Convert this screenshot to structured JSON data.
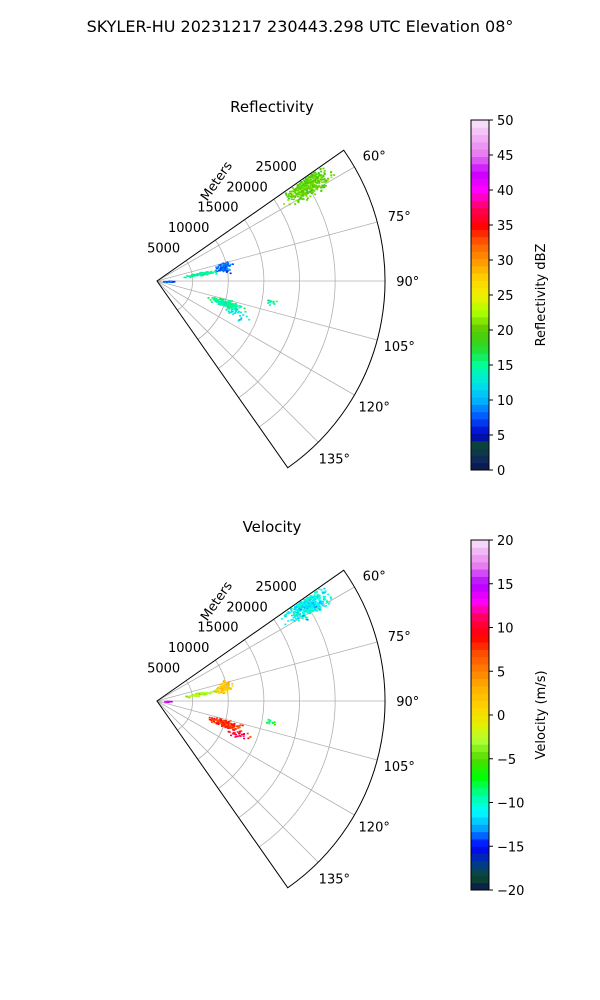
{
  "suptitle": "SKYLER-HU  20231217  230443.298 UTC Elevation 08°",
  "chart_data": [
    {
      "type": "polar-sector",
      "title": "Reflectivity",
      "radial_label": "Meters",
      "r_ticks": [
        5000,
        10000,
        15000,
        20000,
        25000
      ],
      "r_tick_labels": [
        "5000",
        "10000",
        "15000",
        "20000",
        "25000"
      ],
      "rlim": [
        0,
        32000
      ],
      "theta_range_deg": [
        55,
        145
      ],
      "theta_ticks": [
        60,
        75,
        90,
        105,
        120,
        135
      ],
      "theta_tick_labels": [
        "60°",
        "75°",
        "90°",
        "105°",
        "120°",
        "135°"
      ],
      "grid": true,
      "colorbar": {
        "label": "Reflectivity dBZ",
        "min": 0,
        "max": 50,
        "ticks": [
          0,
          5,
          10,
          15,
          20,
          25,
          30,
          35,
          40,
          45,
          50
        ],
        "tick_labels": [
          "0",
          "5",
          "10",
          "15",
          "20",
          "25",
          "30",
          "35",
          "40",
          "45",
          "50"
        ]
      },
      "clusters": [
        {
          "theta": 57,
          "theta_spread": 5,
          "r": 25000,
          "r_spread": 4500,
          "value": 20,
          "density": 420
        },
        {
          "theta": 80,
          "theta_spread": 3,
          "r": 6000,
          "r_spread": 3000,
          "value": 15,
          "density": 90
        },
        {
          "theta": 78,
          "theta_spread": 7,
          "r": 9500,
          "r_spread": 1500,
          "value": 8,
          "density": 70
        },
        {
          "theta": 90,
          "theta_spread": 3,
          "r": 1500,
          "r_spread": 1200,
          "value": 8,
          "density": 20
        },
        {
          "theta": 108,
          "theta_spread": 4,
          "r": 10000,
          "r_spread": 3000,
          "value": 15,
          "density": 170
        },
        {
          "theta": 112,
          "theta_spread": 5,
          "r": 12000,
          "r_spread": 2500,
          "value": 13,
          "density": 25
        },
        {
          "theta": 100,
          "theta_spread": 2,
          "r": 16000,
          "r_spread": 1000,
          "value": 15,
          "density": 12
        }
      ]
    },
    {
      "type": "polar-sector",
      "title": "Velocity",
      "radial_label": "Meters",
      "r_ticks": [
        5000,
        10000,
        15000,
        20000,
        25000
      ],
      "r_tick_labels": [
        "5000",
        "10000",
        "15000",
        "20000",
        "25000"
      ],
      "rlim": [
        0,
        32000
      ],
      "theta_range_deg": [
        55,
        145
      ],
      "theta_ticks": [
        60,
        75,
        90,
        105,
        120,
        135
      ],
      "theta_tick_labels": [
        "60°",
        "75°",
        "90°",
        "105°",
        "120°",
        "135°"
      ],
      "grid": true,
      "colorbar": {
        "label": "Velocity (m/s)",
        "min": -20,
        "max": 20,
        "ticks": [
          -20,
          -15,
          -10,
          -5,
          0,
          5,
          10,
          15,
          20
        ],
        "tick_labels": [
          "−20",
          "−15",
          "−10",
          "−5",
          "0",
          "5",
          "10",
          "15",
          "20"
        ]
      },
      "clusters": [
        {
          "theta": 57,
          "theta_spread": 5,
          "r": 25000,
          "r_spread": 4500,
          "value": -11,
          "density": 420
        },
        {
          "theta": 80,
          "theta_spread": 3,
          "r": 6000,
          "r_spread": 3000,
          "value": -3,
          "density": 90
        },
        {
          "theta": 78,
          "theta_spread": 7,
          "r": 9500,
          "r_spread": 1500,
          "value": 2,
          "density": 70
        },
        {
          "theta": 90,
          "theta_spread": 3,
          "r": 1500,
          "r_spread": 1200,
          "value": 14,
          "density": 20
        },
        {
          "theta": 108,
          "theta_spread": 4,
          "r": 10000,
          "r_spread": 3000,
          "value": 8,
          "density": 170
        },
        {
          "theta": 112,
          "theta_spread": 5,
          "r": 12000,
          "r_spread": 2500,
          "value": 10,
          "density": 25
        },
        {
          "theta": 100,
          "theta_spread": 2,
          "r": 16000,
          "r_spread": 1000,
          "value": -8,
          "density": 12
        }
      ]
    }
  ]
}
